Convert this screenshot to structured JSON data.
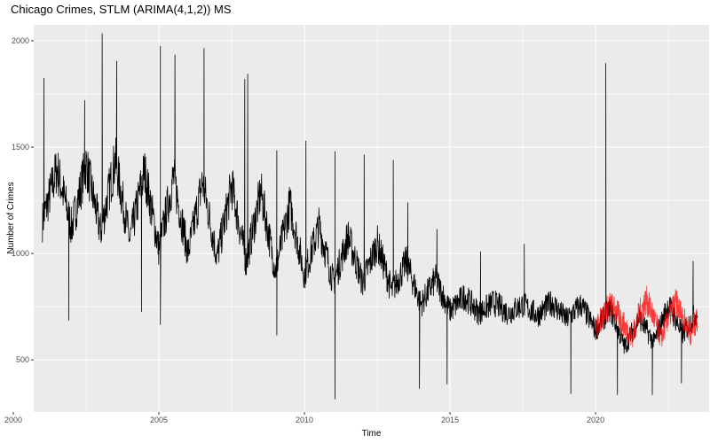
{
  "chart_data": {
    "type": "line",
    "title": "Chicago Crimes, STLM (ARIMA(4,1,2)) MS",
    "xlabel": "Time",
    "ylabel": "Number of Crimes",
    "xlim": [
      2000.7,
      2023.9
    ],
    "ylim": [
      255,
      2075
    ],
    "x_ticks": [
      2000,
      2005,
      2010,
      2015,
      2020
    ],
    "y_ticks": [
      500,
      1000,
      1500,
      2000
    ],
    "grid": true,
    "background": "#ebebeb",
    "gridline_color": "#ffffff",
    "series": [
      {
        "color": "#000000",
        "x": [
          2001.0,
          2001.5,
          2002.0,
          2002.5,
          2003.0,
          2003.5,
          2004.0,
          2004.5,
          2005.0,
          2005.5,
          2006.0,
          2006.5,
          2007.0,
          2007.5,
          2008.0,
          2008.5,
          2009.0,
          2009.5,
          2010.0,
          2010.5,
          2011.0,
          2011.5,
          2012.0,
          2012.5,
          2013.0,
          2013.5,
          2014.0,
          2014.5,
          2015.0,
          2015.5,
          2016.0,
          2016.5,
          2017.0,
          2017.5,
          2018.0,
          2018.5,
          2019.0,
          2019.5,
          2020.0,
          2020.5,
          2021.0,
          2021.5,
          2022.0,
          2022.5,
          2023.0,
          2023.5
        ],
        "y": [
          1150,
          1400,
          1120,
          1420,
          1100,
          1440,
          1060,
          1390,
          1020,
          1360,
          1000,
          1340,
          980,
          1320,
          960,
          1290,
          920,
          1230,
          900,
          1130,
          860,
          1080,
          860,
          1050,
          820,
          960,
          760,
          880,
          730,
          800,
          720,
          770,
          720,
          760,
          710,
          770,
          690,
          760,
          640,
          740,
          560,
          700,
          580,
          760,
          620,
          730
        ],
        "spikes": [
          [
            2001.05,
            1825
          ],
          [
            2002.45,
            1720
          ],
          [
            2003.05,
            2035
          ],
          [
            2003.55,
            1905
          ],
          [
            2005.05,
            1975
          ],
          [
            2005.55,
            1935
          ],
          [
            2006.55,
            1965
          ],
          [
            2007.95,
            1820
          ],
          [
            2008.05,
            1845
          ],
          [
            2009.05,
            1485
          ],
          [
            2010.05,
            1530
          ],
          [
            2011.05,
            1480
          ],
          [
            2012.05,
            1465
          ],
          [
            2013.05,
            1440
          ],
          [
            2013.55,
            1240
          ],
          [
            2014.55,
            1115
          ],
          [
            2016.05,
            1010
          ],
          [
            2017.55,
            1045
          ],
          [
            2020.35,
            1895
          ],
          [
            2023.35,
            965
          ]
        ],
        "dips": [
          [
            2001.9,
            685
          ],
          [
            2004.4,
            725
          ],
          [
            2005.05,
            665
          ],
          [
            2009.05,
            615
          ],
          [
            2011.05,
            315
          ],
          [
            2013.95,
            365
          ],
          [
            2014.9,
            385
          ],
          [
            2019.15,
            340
          ],
          [
            2020.75,
            335
          ],
          [
            2021.95,
            335
          ],
          [
            2022.95,
            390
          ]
        ]
      },
      {
        "color": "#ff0000",
        "x": [
          2020.0,
          2020.25,
          2020.5,
          2020.75,
          2021.0,
          2021.25,
          2021.5,
          2021.75,
          2022.0,
          2022.25,
          2022.5,
          2022.75,
          2023.0,
          2023.25,
          2023.5
        ],
        "y": [
          640,
          710,
          760,
          720,
          660,
          600,
          720,
          780,
          700,
          600,
          700,
          770,
          700,
          620,
          690
        ]
      }
    ]
  }
}
